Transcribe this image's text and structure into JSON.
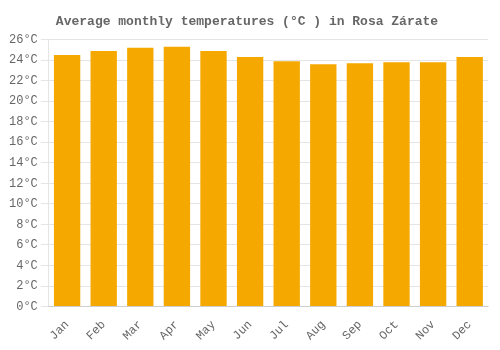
{
  "chart_data": {
    "type": "bar",
    "title": "Average monthly temperatures (°C ) in Rosa Zárate",
    "categories": [
      "Jan",
      "Feb",
      "Mar",
      "Apr",
      "May",
      "Jun",
      "Jul",
      "Aug",
      "Sep",
      "Oct",
      "Nov",
      "Dec"
    ],
    "values": [
      24.5,
      24.9,
      25.2,
      25.3,
      24.9,
      24.3,
      23.9,
      23.6,
      23.7,
      23.8,
      23.8,
      24.3
    ],
    "color": "#F5A800",
    "ylim": [
      0,
      26
    ],
    "yticks": [
      {
        "value": 0,
        "label": "0°C"
      },
      {
        "value": 2,
        "label": "2°C"
      },
      {
        "value": 4,
        "label": "4°C"
      },
      {
        "value": 6,
        "label": "6°C"
      },
      {
        "value": 8,
        "label": "8°C"
      },
      {
        "value": 10,
        "label": "10°C"
      },
      {
        "value": 12,
        "label": "12°C"
      },
      {
        "value": 14,
        "label": "14°C"
      },
      {
        "value": 16,
        "label": "16°C"
      },
      {
        "value": 18,
        "label": "18°C"
      },
      {
        "value": 20,
        "label": "20°C"
      },
      {
        "value": 22,
        "label": "22°C"
      },
      {
        "value": 24,
        "label": "24°C"
      },
      {
        "value": 26,
        "label": "26°C"
      }
    ],
    "grid": true
  }
}
